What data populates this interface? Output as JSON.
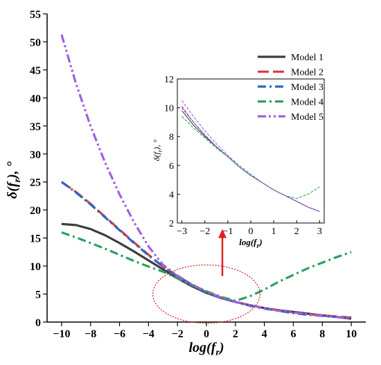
{
  "chart_data": [
    {
      "type": "line",
      "xlabel_base": "log(f",
      "xlabel_sub": "r",
      "xlabel_tail": ")",
      "ylabel_base": "δ(f",
      "ylabel_sub": "r",
      "ylabel_tail": "), °",
      "xlim": [
        -11,
        11
      ],
      "ylim": [
        0,
        55
      ],
      "xticks": [
        -10,
        -8,
        -6,
        -4,
        -2,
        0,
        2,
        4,
        6,
        8,
        10
      ],
      "yticks": [
        0,
        5,
        10,
        15,
        20,
        25,
        30,
        35,
        40,
        45,
        50,
        55
      ],
      "grid": false,
      "legend_position": "top-right",
      "series": [
        {
          "name": "Model 1",
          "color": "#3d3d3d",
          "dash": "solid",
          "x": [
            -10,
            -9,
            -8,
            -7,
            -6,
            -5,
            -4,
            -3,
            -2,
            -1,
            0,
            1,
            2,
            3,
            4,
            5,
            6,
            7,
            8,
            9,
            10
          ],
          "y": [
            17.5,
            17.3,
            16.6,
            15.5,
            14.1,
            12.6,
            11.0,
            9.4,
            7.8,
            6.4,
            5.2,
            4.3,
            3.6,
            3.0,
            2.5,
            2.1,
            1.8,
            1.5,
            1.2,
            0.9,
            0.6
          ]
        },
        {
          "name": "Model 2",
          "color": "#e03c3c",
          "dash": "long-dash",
          "x": [
            -10,
            -9,
            -8,
            -7,
            -6,
            -5,
            -4,
            -3,
            -2,
            -1,
            0,
            1,
            2,
            3,
            4,
            5,
            6,
            7,
            8,
            9,
            10
          ],
          "y": [
            25.0,
            23.2,
            21.1,
            18.8,
            16.5,
            14.2,
            12.0,
            9.9,
            8.2,
            6.7,
            5.4,
            4.4,
            3.6,
            3.0,
            2.5,
            2.1,
            1.7,
            1.4,
            1.2,
            1.0,
            0.8
          ]
        },
        {
          "name": "Model 3",
          "color": "#2a66c8",
          "dash": "dash-dot",
          "x": [
            -10,
            -9,
            -8,
            -7,
            -6,
            -5,
            -4,
            -3,
            -2,
            -1,
            0,
            1,
            2,
            3,
            4,
            5,
            6,
            7,
            8,
            9,
            10
          ],
          "y": [
            25.0,
            23.1,
            21.0,
            18.7,
            16.4,
            14.1,
            11.9,
            9.9,
            8.1,
            6.6,
            5.3,
            4.3,
            3.6,
            2.9,
            2.4,
            2.0,
            1.6,
            1.3,
            1.1,
            0.9,
            0.7
          ]
        },
        {
          "name": "Model 4",
          "color": "#2e9e5e",
          "dash": "dash-dot",
          "x": [
            -10,
            -9,
            -8,
            -7,
            -6,
            -5,
            -4,
            -3,
            -2,
            -1,
            0,
            1,
            2,
            3,
            4,
            5,
            6,
            7,
            8,
            9,
            10
          ],
          "y": [
            16.0,
            15.1,
            14.1,
            13.1,
            12.0,
            10.9,
            9.9,
            9.0,
            7.8,
            6.6,
            5.5,
            4.5,
            3.8,
            4.6,
            5.8,
            7.2,
            8.4,
            9.6,
            10.6,
            11.6,
            12.5
          ]
        },
        {
          "name": "Model 5",
          "color": "#a05ee0",
          "dash": "dash-dot-dot",
          "x": [
            -10,
            -9,
            -8,
            -7,
            -6,
            -5,
            -4,
            -3,
            -2,
            -1,
            0,
            1,
            2,
            3,
            4,
            5,
            6,
            7,
            8,
            9,
            10
          ],
          "y": [
            51.3,
            42.5,
            35.0,
            28.5,
            22.8,
            17.8,
            13.5,
            10.2,
            8.3,
            6.7,
            5.4,
            4.4,
            3.6,
            3.0,
            2.5,
            2.0,
            1.7,
            1.4,
            1.1,
            0.9,
            0.7
          ]
        }
      ]
    },
    {
      "type": "line",
      "xlabel_base": "log(f",
      "xlabel_sub": "r",
      "xlabel_tail": ")",
      "ylabel_base": "δ(f",
      "ylabel_sub": "r",
      "ylabel_tail": "), °",
      "xlim": [
        -3.2,
        3.2
      ],
      "ylim": [
        2,
        12
      ],
      "xticks": [
        -3,
        -2,
        -1,
        0,
        1,
        2,
        3
      ],
      "yticks": [
        2,
        4,
        6,
        8,
        10,
        12
      ],
      "grid": false,
      "series": [
        {
          "name": "Model 1",
          "color": "#3d3d3d",
          "dash": "solid",
          "x": [
            -3,
            -2.5,
            -2,
            -1.5,
            -1,
            -0.5,
            0,
            0.5,
            1,
            1.5,
            2,
            2.5,
            3
          ],
          "y": [
            9.8,
            8.8,
            8.0,
            7.3,
            6.6,
            5.9,
            5.3,
            4.8,
            4.3,
            3.9,
            3.5,
            3.1,
            2.8
          ]
        },
        {
          "name": "Model 2",
          "color": "#e03c3c",
          "dash": "long-dash",
          "x": [
            -3,
            -2.5,
            -2,
            -1.5,
            -1,
            -0.5,
            0,
            0.5,
            1,
            1.5,
            2,
            2.5,
            3
          ],
          "y": [
            10.1,
            9.0,
            8.1,
            7.3,
            6.6,
            5.9,
            5.3,
            4.8,
            4.3,
            3.9,
            3.5,
            3.1,
            2.8
          ]
        },
        {
          "name": "Model 3",
          "color": "#2a66c8",
          "dash": "dash-dot",
          "x": [
            -3,
            -2.5,
            -2,
            -1.5,
            -1,
            -0.5,
            0,
            0.5,
            1,
            1.5,
            2,
            2.5,
            3
          ],
          "y": [
            10.0,
            9.0,
            8.1,
            7.3,
            6.6,
            5.9,
            5.3,
            4.8,
            4.3,
            3.9,
            3.5,
            3.1,
            2.8
          ]
        },
        {
          "name": "Model 4",
          "color": "#2e9e5e",
          "dash": "dash-dot",
          "x": [
            -3,
            -2.5,
            -2,
            -1.5,
            -1,
            -0.5,
            0,
            0.5,
            1,
            1.5,
            2,
            2.5,
            3
          ],
          "y": [
            9.4,
            8.6,
            7.9,
            7.2,
            6.6,
            5.9,
            5.3,
            4.8,
            4.3,
            3.9,
            3.7,
            4.0,
            4.5
          ]
        },
        {
          "name": "Model 5",
          "color": "#a05ee0",
          "dash": "dash-dot-dot",
          "x": [
            -3,
            -2.5,
            -2,
            -1.5,
            -1,
            -0.5,
            0,
            0.5,
            1,
            1.5,
            2,
            2.5,
            3
          ],
          "y": [
            10.5,
            9.4,
            8.4,
            7.5,
            6.7,
            6.0,
            5.4,
            4.8,
            4.3,
            3.9,
            3.5,
            3.1,
            2.8
          ]
        }
      ]
    }
  ],
  "annotation": {
    "ellipse_color": "#e02020",
    "arrow_color": "#e02020"
  }
}
